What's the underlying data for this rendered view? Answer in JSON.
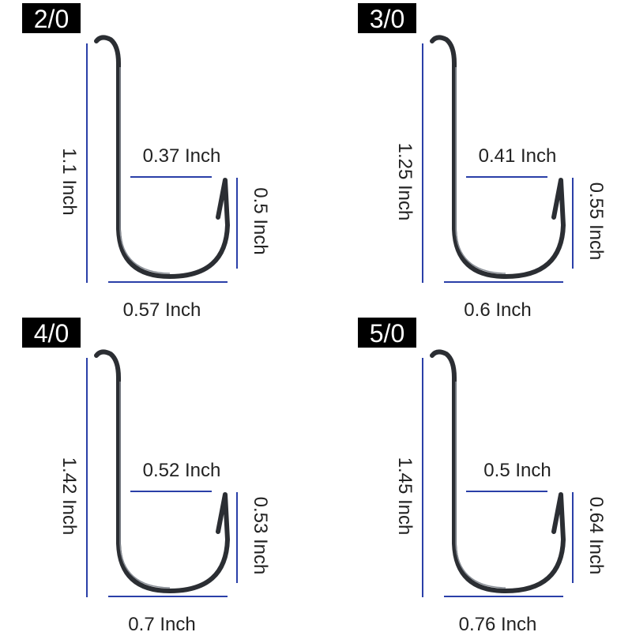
{
  "panels": [
    {
      "size": "2/0",
      "length": "1.1 Inch",
      "gap": "0.37 Inch",
      "point": "0.5 Inch",
      "width": "0.57 Inch"
    },
    {
      "size": "3/0",
      "length": "1.25 Inch",
      "gap": "0.41 Inch",
      "point": "0.55 Inch",
      "width": "0.6 Inch"
    },
    {
      "size": "4/0",
      "length": "1.42 Inch",
      "gap": "0.52 Inch",
      "point": "0.53 Inch",
      "width": "0.7 Inch"
    },
    {
      "size": "5/0",
      "length": "1.45 Inch",
      "gap": "0.5 Inch",
      "point": "0.64 Inch",
      "width": "0.76 Inch"
    }
  ]
}
